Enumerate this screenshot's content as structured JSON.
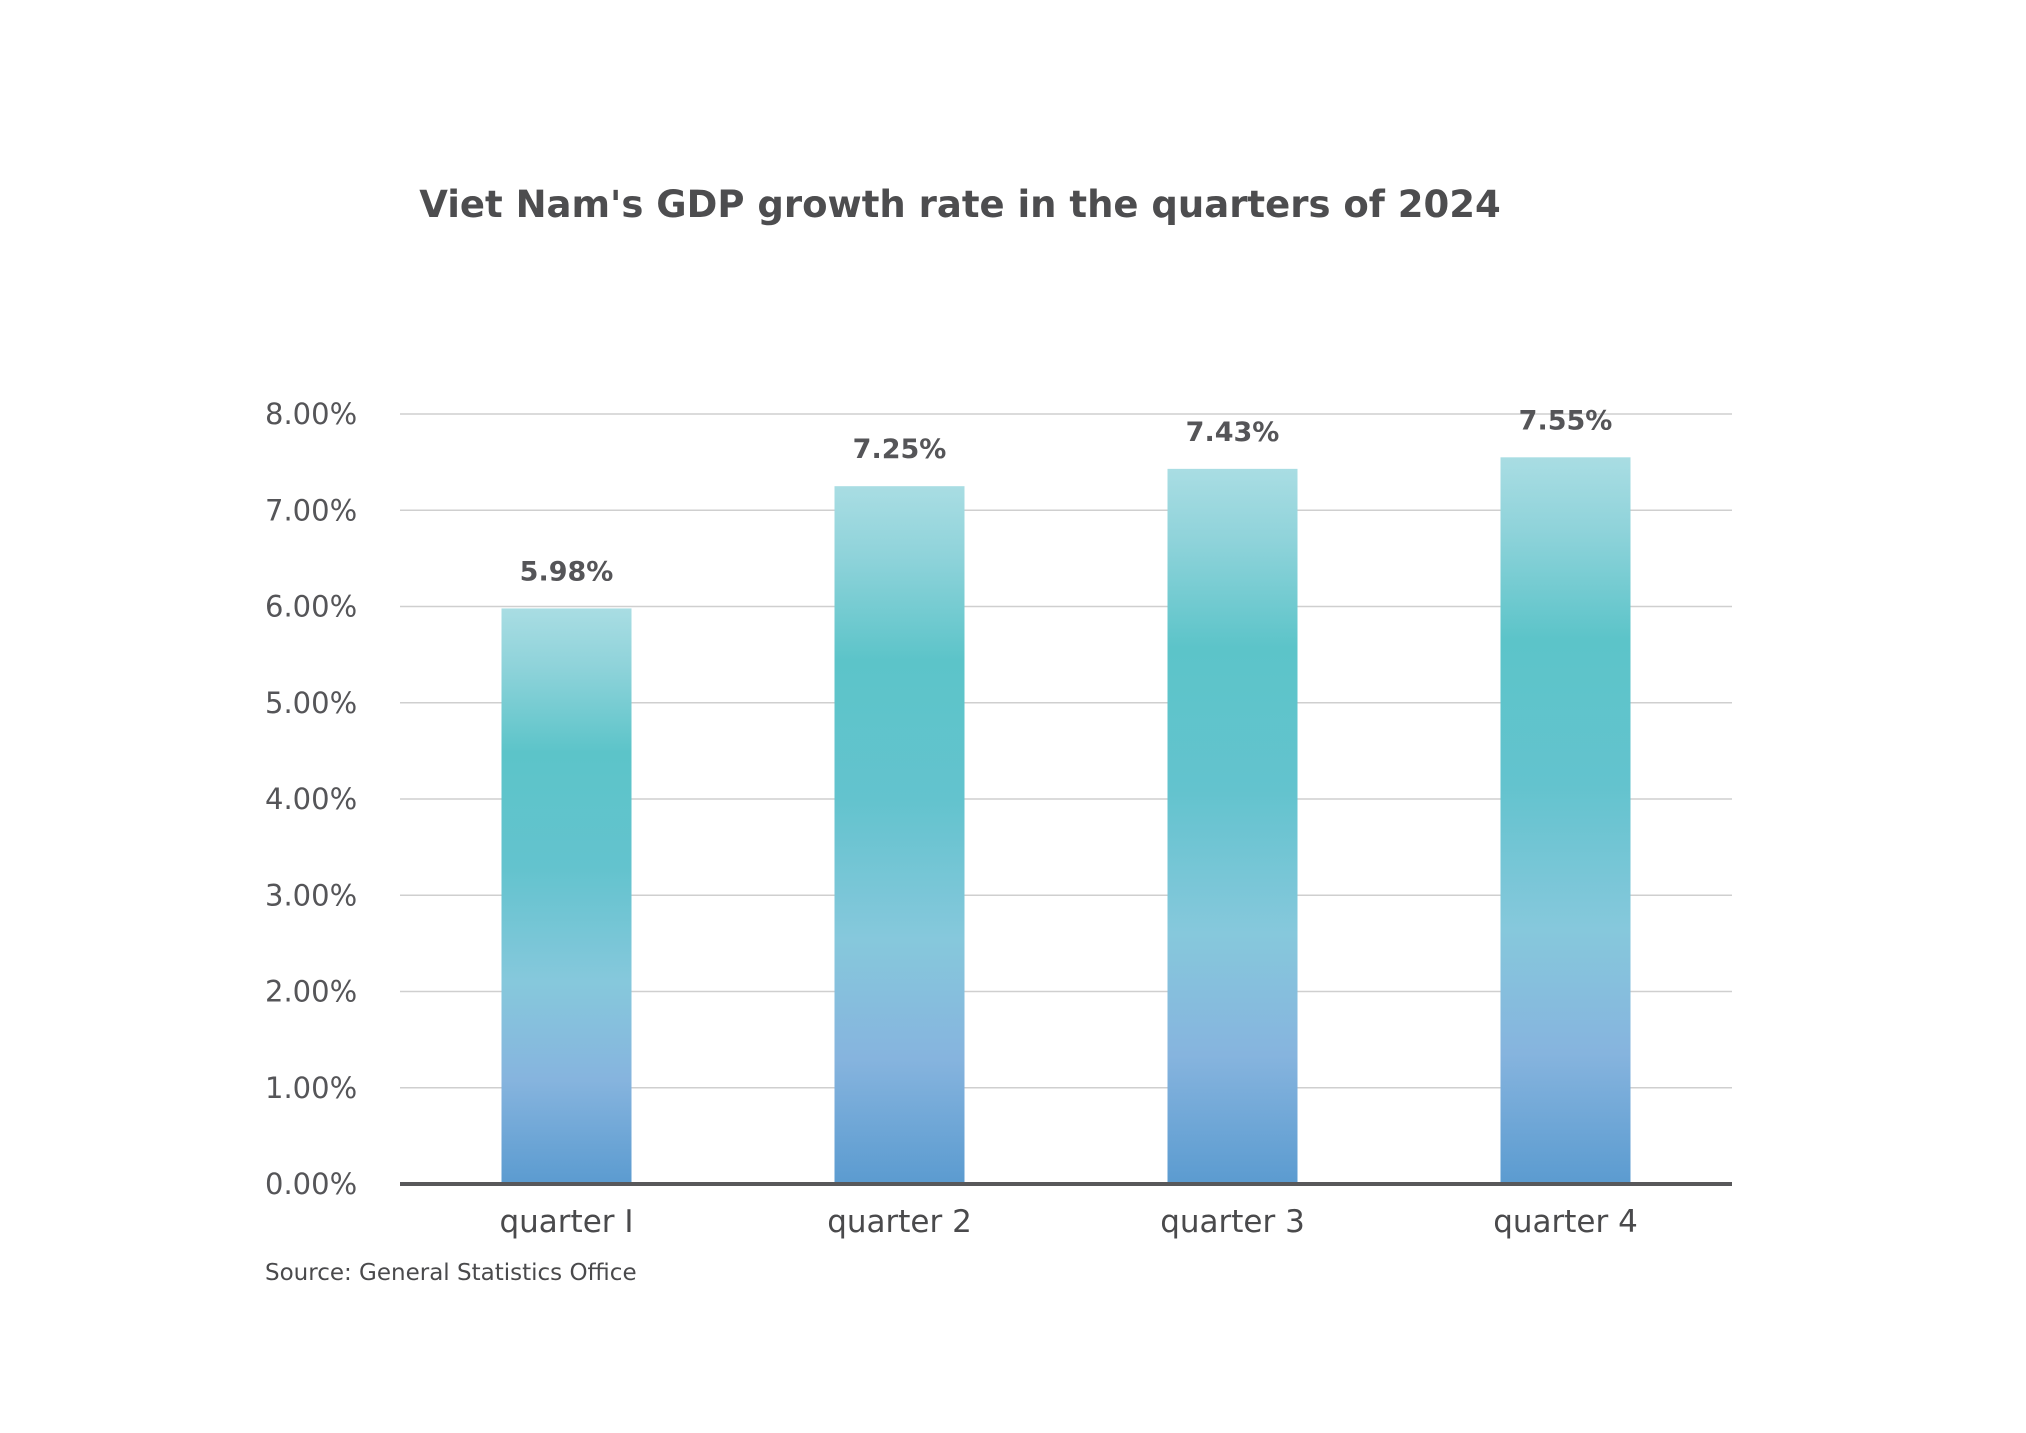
{
  "chart_data": {
    "type": "bar",
    "title": "Viet Nam's GDP growth rate in the quarters of 2024",
    "categories": [
      "quarter I",
      "quarter 2",
      "quarter 3",
      "quarter 4"
    ],
    "values": [
      5.98,
      7.25,
      7.43,
      7.55
    ],
    "value_labels": [
      "5.98%",
      "7.25%",
      "7.43%",
      "7.55%"
    ],
    "y_ticks": [
      0,
      1,
      2,
      3,
      4,
      5,
      6,
      7,
      8
    ],
    "y_tick_labels": [
      "0.00%",
      "1.00%",
      "2.00%",
      "3.00%",
      "4.00%",
      "5.00%",
      "6.00%",
      "7.00%",
      "8.00%"
    ],
    "ylim": [
      0,
      8
    ],
    "xlabel": "",
    "ylabel": "",
    "grid": true,
    "legend": "none",
    "colors": {
      "bar_top": "#a9dde3",
      "bar_mid": "#5cc4c9",
      "bar_low": "#86bedd",
      "bar_bottom": "#5b9bd0",
      "gridline": "#cfcfcf",
      "axis": "#58585a"
    }
  },
  "source": "Source: General Statistics Office"
}
